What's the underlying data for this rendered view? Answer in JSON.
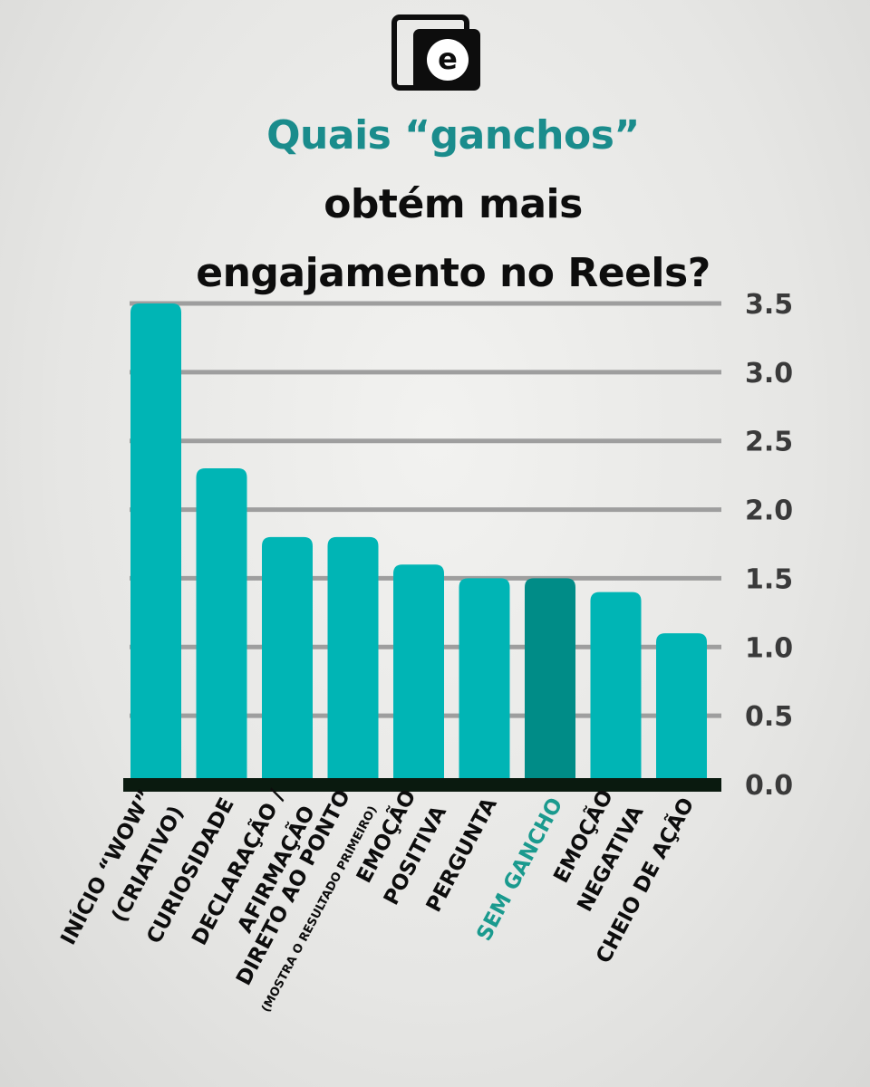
{
  "logo": {
    "letter": "e",
    "icon": "brand-logo-icon"
  },
  "title": {
    "line1": "Quais “ganchos”",
    "line2": "obtém mais",
    "line3": "engajamento no Reels?",
    "accent_color": "#1a8c8c"
  },
  "chart_data": {
    "type": "bar",
    "categories": [
      "INÍCIO “WOW” (CRIATIVO)",
      "CURIOSIDADE",
      "DECLARAÇÃO / AFIRMAÇÃO",
      "DIRETO AO PONTO (MOSTRA O RESULTADO PRIMEIRO)",
      "EMOÇÃO POSITIVA",
      "PERGUNTA",
      "SEM GANCHO",
      "EMOÇÃO NEGATIVA",
      "CHEIO DE AÇÃO"
    ],
    "label_lines": [
      [
        "INÍCIO “WOW”",
        "(CRIATIVO)"
      ],
      [
        "CURIOSIDADE"
      ],
      [
        "DECLARAÇÃO /",
        "AFIRMAÇÃO"
      ],
      [
        "DIRETO AO PONTO",
        "(MOSTRA O RESULTADO PRIMEIRO)"
      ],
      [
        "EMOÇÃO",
        "POSITIVA"
      ],
      [
        "PERGUNTA"
      ],
      [
        "SEM GANCHO"
      ],
      [
        "EMOÇÃO",
        "NEGATIVA"
      ],
      [
        "CHEIO DE AÇÃO"
      ]
    ],
    "values": [
      3.5,
      2.3,
      1.8,
      1.8,
      1.6,
      1.5,
      1.5,
      1.4,
      1.1
    ],
    "highlight_index": 6,
    "yticks": [
      "0.0",
      "0.5",
      "1.0",
      "1.5",
      "2.0",
      "2.5",
      "3.0",
      "3.5"
    ],
    "ylim": [
      0,
      3.5
    ],
    "axis_position": "right",
    "grid": true,
    "colors": {
      "bar": "#00b5b5",
      "highlight_bar": "#008c87",
      "highlight_label": "#1a9a8e",
      "grid": "#9e9e9e",
      "baseline": "#0a1a0f",
      "label": "#0d0d0d",
      "tick": "#3a3a3a"
    }
  }
}
